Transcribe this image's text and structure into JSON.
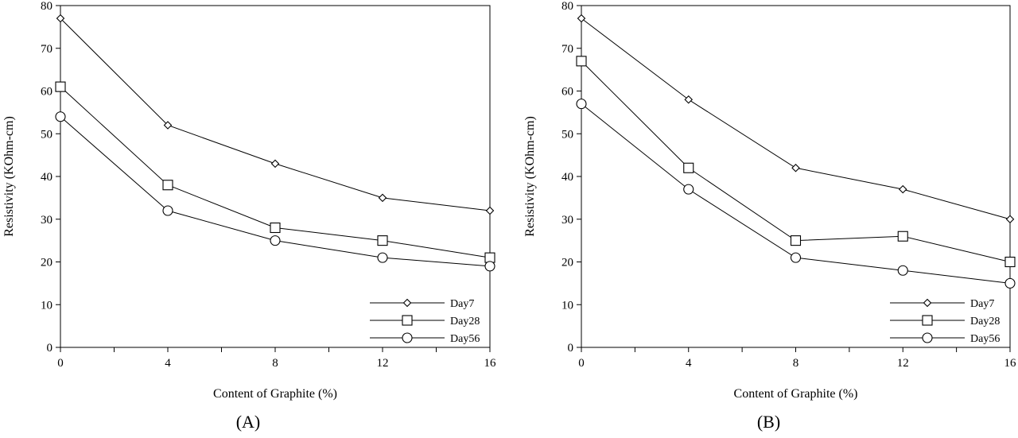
{
  "chart_data": [
    {
      "type": "line",
      "panel_label": "(A)",
      "xlabel": "Content of Graphite (%)",
      "ylabel": "Resistivity (KOhm-cm)",
      "xlim": [
        0,
        16
      ],
      "ylim": [
        0,
        80
      ],
      "x_ticks": [
        0,
        4,
        8,
        12,
        16
      ],
      "y_ticks": [
        0,
        10,
        20,
        30,
        40,
        50,
        60,
        70,
        80
      ],
      "grid": false,
      "legend_position": "bottom-right",
      "x": [
        0,
        4,
        8,
        12,
        16
      ],
      "series": [
        {
          "name": "Day7",
          "marker": "diamond",
          "values": [
            77,
            52,
            43,
            35,
            32
          ]
        },
        {
          "name": "Day28",
          "marker": "square",
          "values": [
            61,
            38,
            28,
            25,
            21
          ]
        },
        {
          "name": "Day56",
          "marker": "circle",
          "values": [
            54,
            32,
            25,
            21,
            19
          ]
        }
      ]
    },
    {
      "type": "line",
      "panel_label": "(B)",
      "xlabel": "Content of Graphite (%)",
      "ylabel": "Resistivity (KOhm-cm)",
      "xlim": [
        0,
        16
      ],
      "ylim": [
        0,
        80
      ],
      "x_ticks": [
        0,
        4,
        8,
        12,
        16
      ],
      "y_ticks": [
        0,
        10,
        20,
        30,
        40,
        50,
        60,
        70,
        80
      ],
      "grid": false,
      "legend_position": "bottom-right",
      "x": [
        0,
        4,
        8,
        12,
        16
      ],
      "series": [
        {
          "name": "Day7",
          "marker": "diamond",
          "values": [
            77,
            58,
            42,
            37,
            30
          ]
        },
        {
          "name": "Day28",
          "marker": "square",
          "values": [
            67,
            42,
            25,
            26,
            20
          ]
        },
        {
          "name": "Day56",
          "marker": "circle",
          "values": [
            57,
            37,
            21,
            18,
            15
          ]
        }
      ]
    }
  ]
}
